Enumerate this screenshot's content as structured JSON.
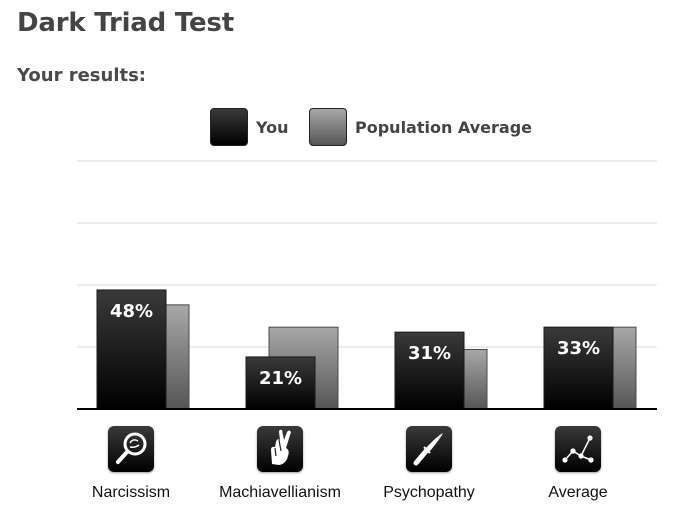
{
  "page": {
    "title": "Dark Triad Test",
    "subtitle": "Your results:"
  },
  "legend": [
    {
      "label": "You",
      "color": "#000000"
    },
    {
      "label": "Population Average",
      "color": "#777777"
    }
  ],
  "categories": [
    {
      "label": "Narcissism",
      "icon": "magnifying-glass-icon"
    },
    {
      "label": "Machiavellianism",
      "icon": "crossed-fingers-icon"
    },
    {
      "label": "Psychopathy",
      "icon": "knife-icon"
    },
    {
      "label": "Average",
      "icon": "scatter-graph-icon"
    }
  ],
  "chart_data": {
    "type": "bar",
    "categories": [
      "Narcissism",
      "Machiavellianism",
      "Psychopathy",
      "Average"
    ],
    "series": [
      {
        "name": "You",
        "values": [
          48,
          21,
          31,
          33
        ],
        "labels": [
          "48%",
          "21%",
          "31%",
          "33%"
        ]
      },
      {
        "name": "Population Average",
        "values": [
          42,
          33,
          24,
          33
        ]
      }
    ],
    "ylim": [
      0,
      100
    ],
    "grid": true,
    "legend_placement": "top-center",
    "colors": {
      "you": "#000000",
      "population": "#777777"
    }
  }
}
